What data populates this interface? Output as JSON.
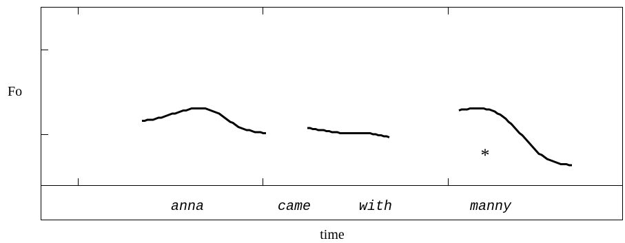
{
  "chart_data": {
    "type": "line",
    "ylabel": "Fo",
    "xlabel": "time",
    "words": [
      "anna",
      "came",
      "with",
      "manny"
    ],
    "accent_marker": "*",
    "series": [
      {
        "segment": "anna",
        "points": [
          [
            0.0,
            0.36
          ],
          [
            0.1,
            0.37
          ],
          [
            0.2,
            0.39
          ],
          [
            0.3,
            0.41
          ],
          [
            0.4,
            0.43
          ],
          [
            0.5,
            0.43
          ],
          [
            0.6,
            0.41
          ],
          [
            0.7,
            0.36
          ],
          [
            0.8,
            0.32
          ],
          [
            0.9,
            0.3
          ],
          [
            1.0,
            0.29
          ]
        ]
      },
      {
        "segment": "came-with",
        "points": [
          [
            0.0,
            0.32
          ],
          [
            0.15,
            0.31
          ],
          [
            0.3,
            0.3
          ],
          [
            0.45,
            0.29
          ],
          [
            0.6,
            0.29
          ],
          [
            0.75,
            0.29
          ],
          [
            0.9,
            0.28
          ],
          [
            1.0,
            0.27
          ]
        ]
      },
      {
        "segment": "manny",
        "points": [
          [
            0.0,
            0.42
          ],
          [
            0.1,
            0.43
          ],
          [
            0.2,
            0.43
          ],
          [
            0.3,
            0.42
          ],
          [
            0.4,
            0.38
          ],
          [
            0.5,
            0.32
          ],
          [
            0.6,
            0.25
          ],
          [
            0.7,
            0.18
          ],
          [
            0.8,
            0.14
          ],
          [
            0.9,
            0.12
          ],
          [
            1.0,
            0.11
          ]
        ]
      }
    ]
  }
}
